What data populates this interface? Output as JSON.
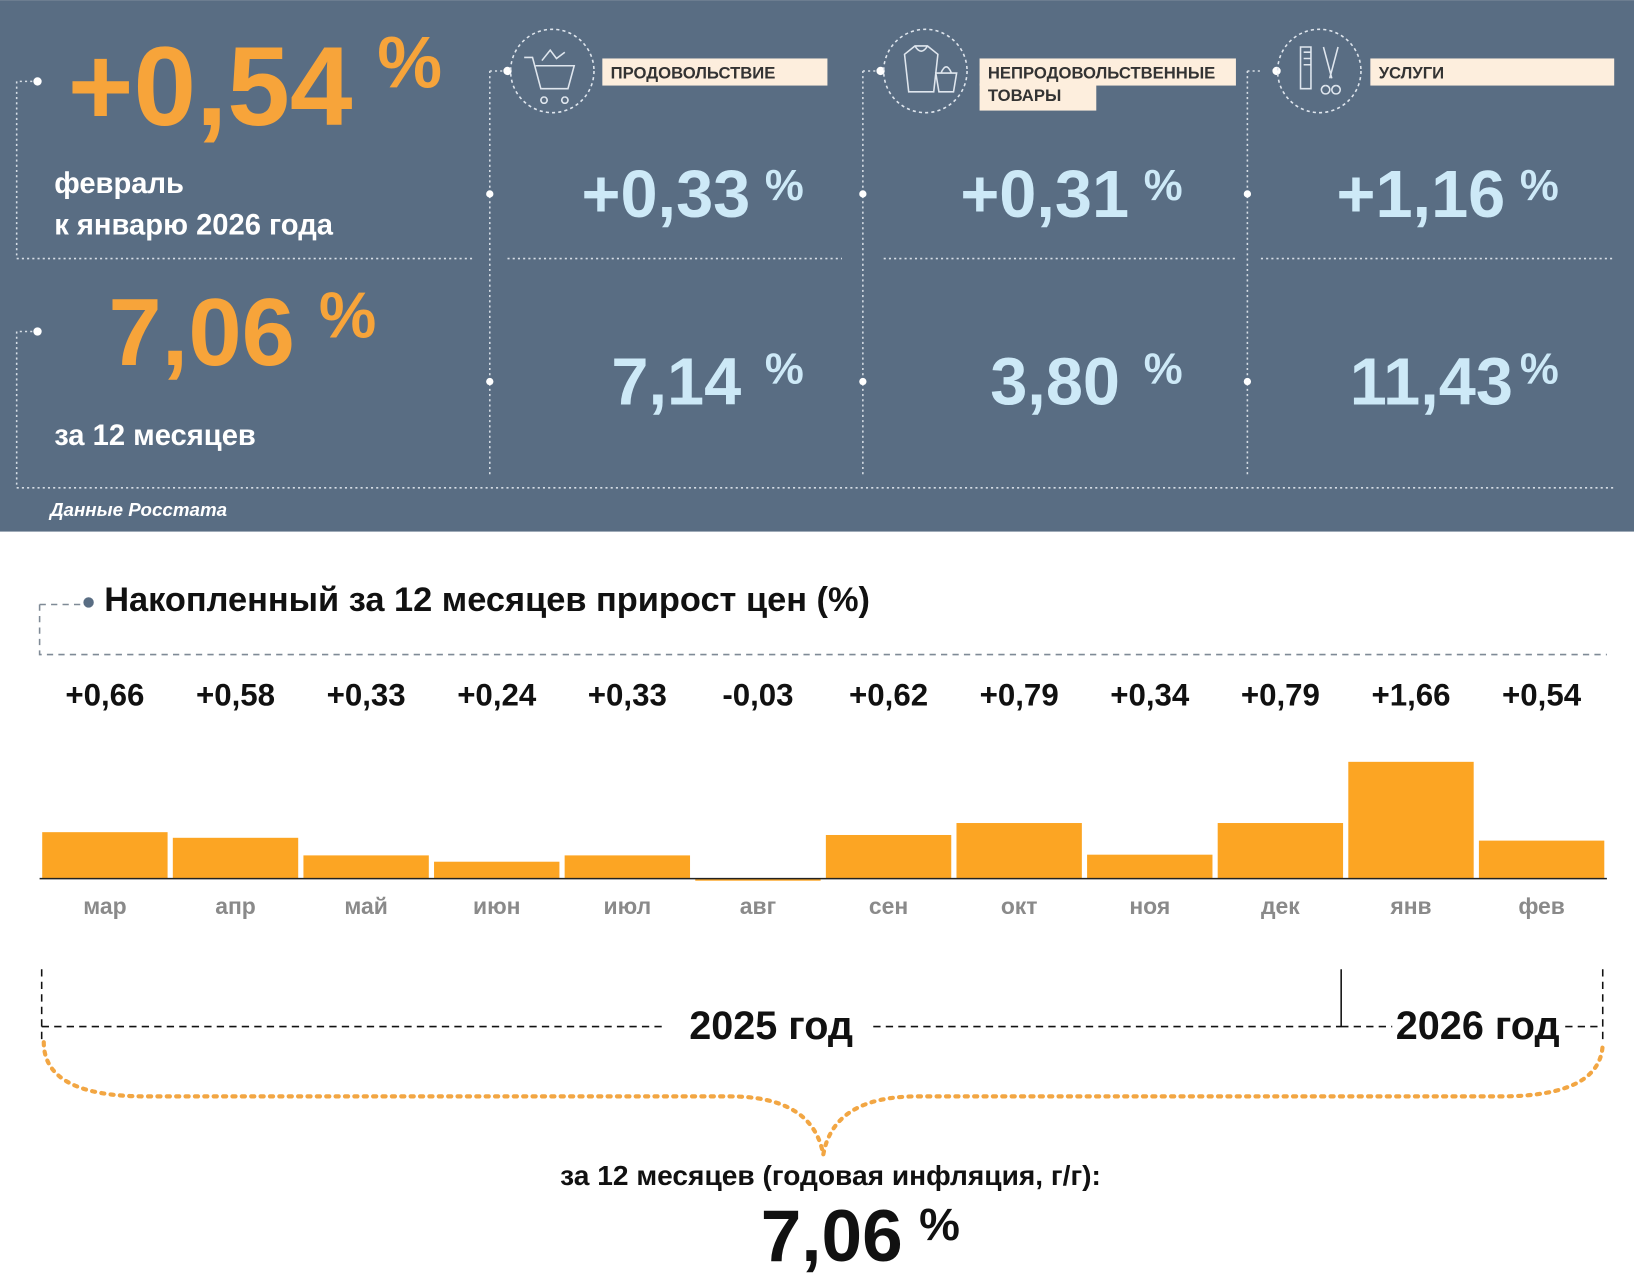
{
  "summary": {
    "month_value": "+0,54",
    "unit": "%",
    "month_label": "февраль",
    "month_sublabel": "к январю 2026 года",
    "year_value": "7,06",
    "year_label": "за 12 месяцев",
    "source": "Данные Росстата"
  },
  "groups": [
    {
      "name": [
        "ПРОДОВОЛЬСТВИЕ"
      ],
      "month": "+0,33",
      "year": "7,14"
    },
    {
      "name": [
        "НЕПРОДОВОЛЬСТВЕННЫЕ",
        "ТОВАРЫ"
      ],
      "month": "+0,31",
      "year": "3,80"
    },
    {
      "name": [
        "УСЛУГИ"
      ],
      "month": "+1,16",
      "year": "11,43"
    }
  ],
  "chart_data": {
    "type": "bar",
    "title": "Накопленный за 12 месяцев прирост цен (%)",
    "categories": [
      "мар",
      "апр",
      "май",
      "июн",
      "июл",
      "авг",
      "сен",
      "окт",
      "ноя",
      "дек",
      "янв",
      "фев"
    ],
    "values": [
      0.66,
      0.58,
      0.33,
      0.24,
      0.33,
      -0.03,
      0.62,
      0.79,
      0.34,
      0.79,
      1.66,
      0.54
    ],
    "value_labels": [
      "+0,66",
      "+0,58",
      "+0,33",
      "+0,24",
      "+0,33",
      "-0,03",
      "+0,62",
      "+0,79",
      "+0,34",
      "+0,79",
      "+1,66",
      "+0,54"
    ],
    "color": "#fca523",
    "ylim": [
      0,
      2
    ],
    "period_labels": [
      "2025 год",
      "2026 год"
    ],
    "total_label": "за 12 месяцев (годовая инфляция, г/г):"
  }
}
